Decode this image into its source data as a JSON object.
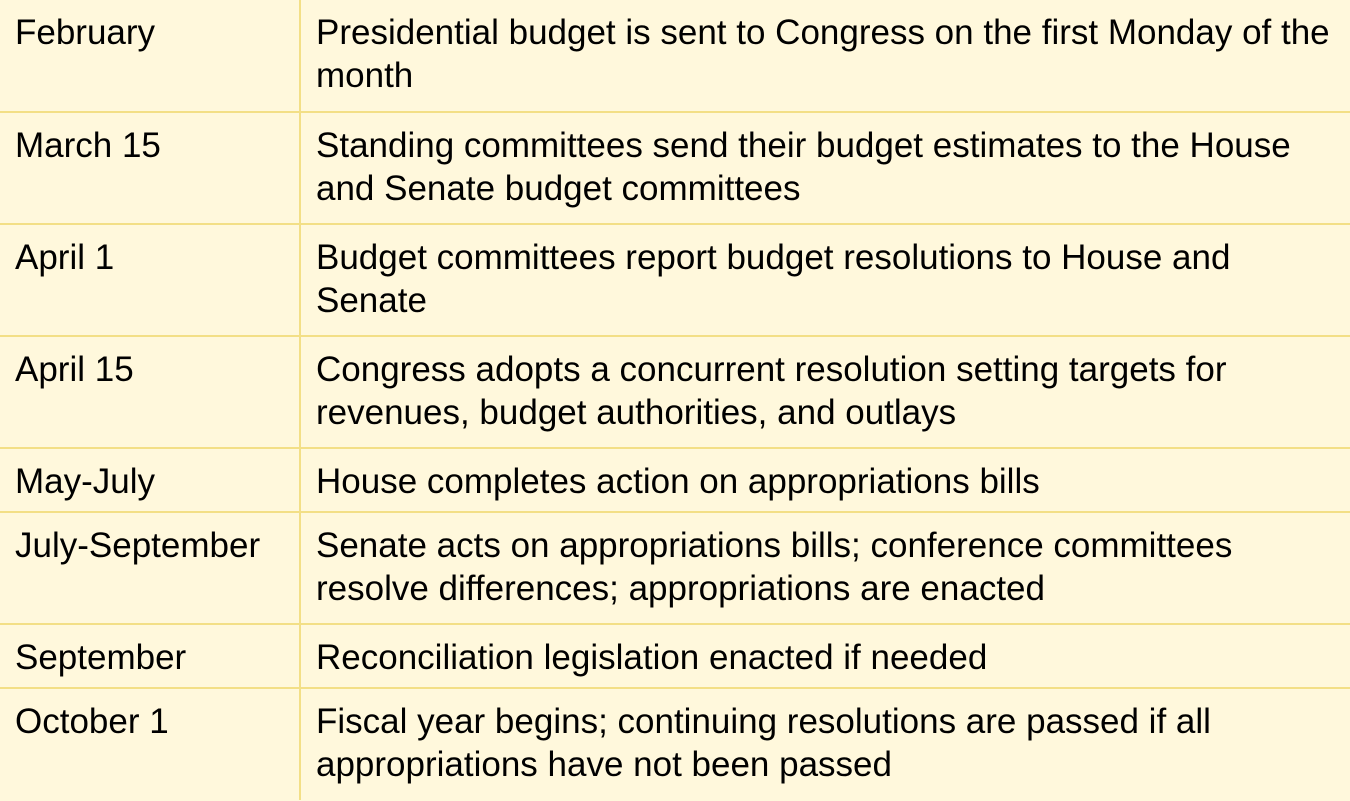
{
  "rows": [
    {
      "date": "February",
      "event": "Presidential budget is sent to Congress on the first Monday of the month"
    },
    {
      "date": "March 15",
      "event": "Standing committees send their budget estimates to the House and Senate budget committees"
    },
    {
      "date": "April 1",
      "event": "Budget committees report budget resolutions to House and Senate"
    },
    {
      "date": "April 15",
      "event": "Congress adopts a concurrent resolution setting targets for revenues, budget authorities, and outlays"
    },
    {
      "date": "May-July",
      "event": "House completes action on appropriations bills"
    },
    {
      "date": "July-September",
      "event": "Senate acts on appropriations bills; conference committees resolve differences; appropriations are enacted"
    },
    {
      "date": "September",
      "event": "Reconciliation legislation enacted if needed"
    },
    {
      "date": "October 1",
      "event": "Fiscal year begins; continuing resolutions are passed if all appropriations have not been passed"
    }
  ],
  "colors": {
    "background": "#fff8dc",
    "grid": "#f3df86",
    "text": "#000000"
  }
}
